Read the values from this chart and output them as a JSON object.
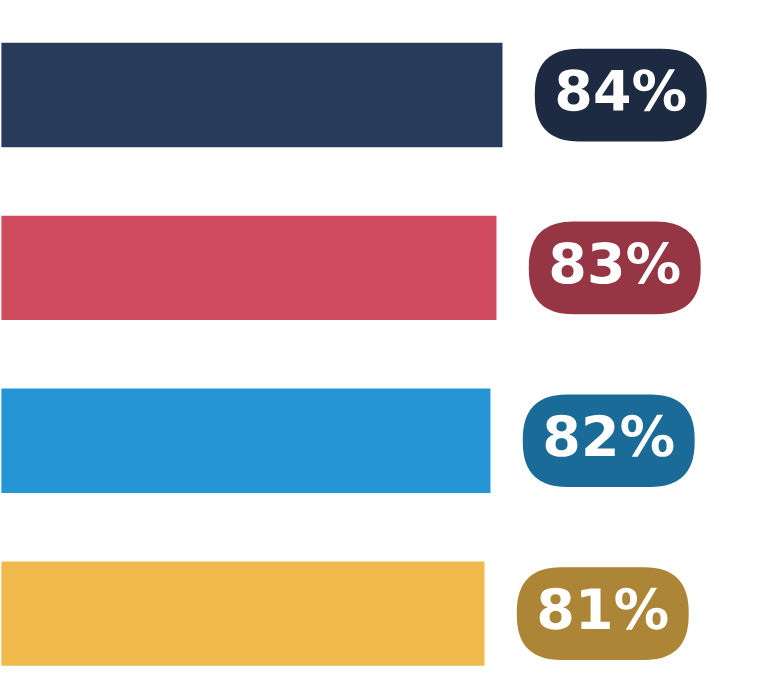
{
  "chart_data": {
    "type": "bar",
    "orientation": "horizontal",
    "categories": [
      null,
      null,
      null,
      null
    ],
    "values": [
      84,
      83,
      82,
      81
    ],
    "colors": [
      "#293b5b",
      "#d04b5e",
      "#2595d5",
      "#f0b94b"
    ],
    "value_labels": [
      "84%",
      "83%",
      "82%",
      "81%"
    ]
  }
}
